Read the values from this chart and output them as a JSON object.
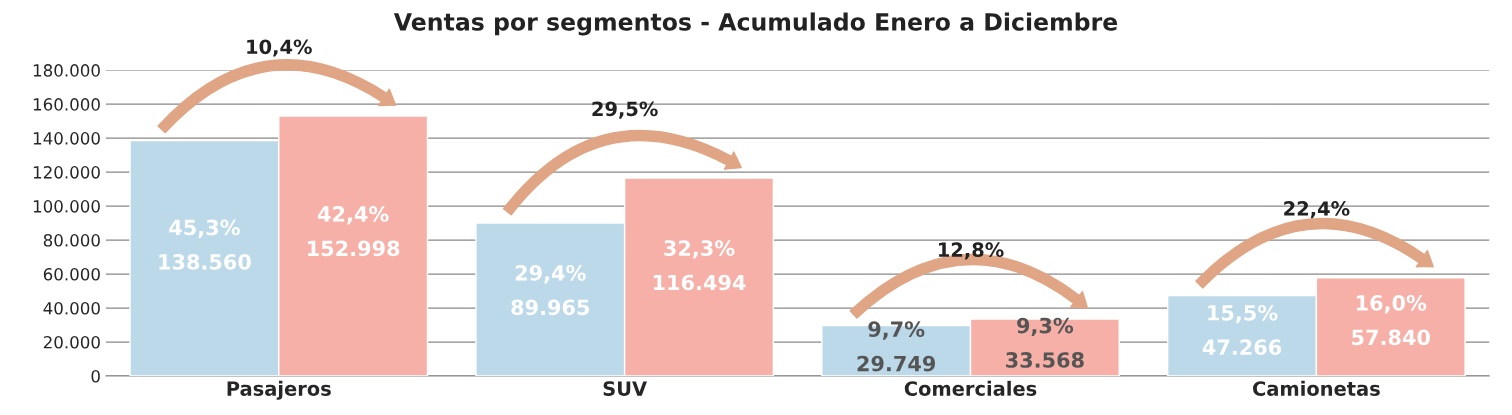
{
  "chart_data": {
    "type": "bar",
    "title": "Ventas por segmentos - Acumulado Enero a Diciembre",
    "categories": [
      "Pasajeros",
      "SUV",
      "Comerciales",
      "Camionetas"
    ],
    "series": [
      {
        "color": "#bcd9ea",
        "values": [
          138560,
          89965,
          29749,
          47266
        ],
        "value_labels": [
          "45,3%\n138.560",
          "29,4%\n89.965",
          "9,7%\n29.749",
          "15,5%\n47.266"
        ]
      },
      {
        "color": "#f7b0a7",
        "values": [
          152998,
          116494,
          33568,
          57840
        ],
        "value_labels": [
          "42,4%\n152.998",
          "32,3%\n116.494",
          "9,3%\n33.568",
          "16,0%\n57.840"
        ]
      }
    ],
    "annotations": [
      "10,4%",
      "29,5%",
      "12,8%",
      "22,4%"
    ],
    "ylim": [
      0,
      180000
    ],
    "yticks": [
      {
        "value": 0,
        "label": "0"
      },
      {
        "value": 20000,
        "label": "20.000"
      },
      {
        "value": 40000,
        "label": "40.000"
      },
      {
        "value": 60000,
        "label": "60.000"
      },
      {
        "value": 80000,
        "label": "80.000"
      },
      {
        "value": 100000,
        "label": "100.000"
      },
      {
        "value": 120000,
        "label": "120.000"
      },
      {
        "value": 140000,
        "label": "140.000"
      },
      {
        "value": 160000,
        "label": "160.000"
      },
      {
        "value": 180000,
        "label": "180.000"
      }
    ],
    "grid": "y",
    "legend": false
  }
}
